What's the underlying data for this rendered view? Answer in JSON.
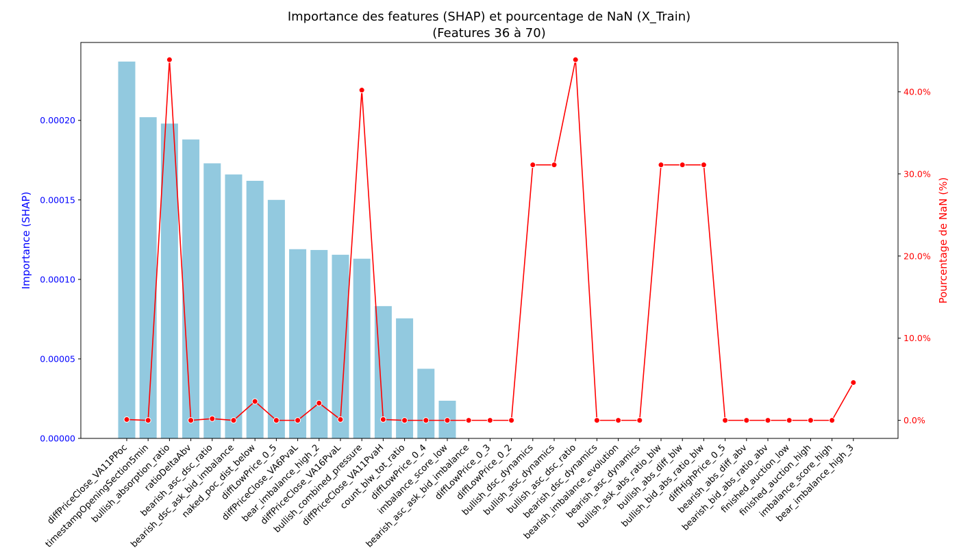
{
  "chart_data": {
    "type": "bar",
    "title": "Importance des features (SHAP) et pourcentage de NaN (X_Train)",
    "subtitle": "(Features 36 à 70)",
    "categories": [
      "diffPriceClose_VA11PPoc",
      "timestampOpeningSection5min",
      "bullish_absorption_ratio",
      "ratioDeltaAbv",
      "bearish_asc_dsc_ratio",
      "bearish_dsc_ask_bid_imbalance",
      "naked_poc_dist_below",
      "diffLowPrice_0_5",
      "diffPriceClose_VA6PvaL",
      "bear_imbalance_high_2",
      "diffPriceClose_VA16PvaL",
      "bullish_combined_pressure",
      "diffPriceClose_VA11PvaH",
      "count_blw_tot_ratio",
      "diffLowPrice_0_4",
      "imbalance_score_low",
      "bearish_asc_ask_bid_imbalance",
      "diffLowPrice_0_3",
      "diffLowPrice_0_2",
      "bullish_dsc_dynamics",
      "bullish_asc_dynamics",
      "bullish_asc_dsc_ratio",
      "bearish_dsc_dynamics",
      "bearish_imbalance_evolution",
      "bearish_asc_dynamics",
      "bullish_ask_abs_ratio_blw",
      "bullish_abs_diff_blw",
      "bullish_bid_abs_ratio_blw",
      "diffHighPrice_0_5",
      "bearish_abs_diff_abv",
      "bearish_bid_abs_ratio_abv",
      "finished_auction_low",
      "finished_auction_high",
      "imbalance_score_high",
      "bear_imbalance_high_3"
    ],
    "series": [
      {
        "name": "Importance (SHAP)",
        "type": "bar",
        "axis": "left",
        "color": "#92c9df",
        "values": [
          0.000237,
          0.000202,
          0.000198,
          0.000188,
          0.000173,
          0.000166,
          0.000162,
          0.00015,
          0.000119,
          0.0001185,
          0.0001155,
          0.000113,
          8.32e-05,
          7.55e-05,
          4.38e-05,
          2.37e-05,
          0,
          0,
          0,
          0,
          0,
          0,
          0,
          0,
          0,
          0,
          0,
          0,
          0,
          0,
          0,
          0,
          0,
          0,
          0
        ]
      },
      {
        "name": "Pourcentage de NaN (%)",
        "type": "line",
        "axis": "right",
        "color": "#ff0000",
        "values": [
          0.1,
          0.0,
          43.9,
          0.0,
          0.2,
          0.0,
          2.3,
          0.0,
          0.0,
          2.1,
          0.1,
          40.2,
          0.1,
          0.0,
          0.0,
          0.0,
          0.0,
          0.0,
          0.0,
          31.1,
          31.1,
          43.9,
          0.0,
          0.0,
          0.0,
          31.1,
          31.1,
          31.1,
          0.0,
          0.0,
          0.0,
          0.0,
          0.0,
          0.0,
          4.6
        ]
      }
    ],
    "ylabel": "Importance (SHAP)",
    "ylabel_right": "Pourcentage de NaN (%)",
    "ylim": [
      0,
      0.000249
    ],
    "ylim_right": [
      -2.2,
      46.0
    ],
    "yticks": [
      0,
      5e-05,
      0.0001,
      0.00015,
      0.0002
    ],
    "ytick_labels": [
      "0.00000",
      "0.00005",
      "0.00010",
      "0.00015",
      "0.00020"
    ],
    "yticks_right": [
      0,
      10,
      20,
      30,
      40
    ],
    "ytick_labels_right": [
      "0.0%",
      "10.0%",
      "20.0%",
      "30.0%",
      "40.0%"
    ],
    "left_axis_color": "#0000ff",
    "right_axis_color": "#ff0000",
    "grid": false
  }
}
